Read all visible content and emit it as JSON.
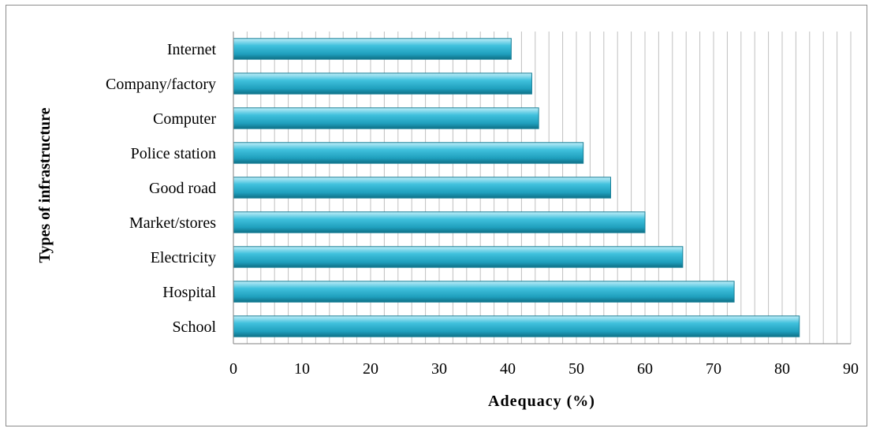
{
  "chart_data": {
    "type": "bar",
    "orientation": "horizontal",
    "categories": [
      "Internet",
      "Company/factory",
      "Computer",
      "Police station",
      "Good road",
      "Market/stores",
      "Electricity",
      "Hospital",
      "School"
    ],
    "values": [
      40.5,
      43.5,
      44.5,
      51,
      55,
      60,
      65.5,
      73,
      82.5
    ],
    "xlabel": "Adequacy (%)",
    "ylabel": "Types of infrastructure",
    "xlim": [
      0,
      90
    ],
    "xticks": [
      0,
      10,
      20,
      30,
      40,
      50,
      60,
      70,
      80,
      90
    ],
    "bar_color": "#29abc9",
    "grid": "vertical minor lines every 2"
  }
}
